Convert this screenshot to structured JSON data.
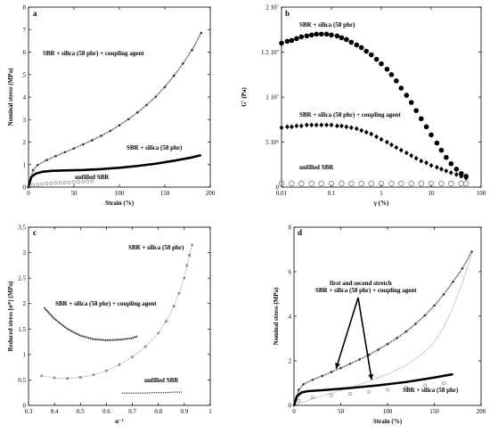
{
  "chart_data": [
    {
      "panel": "a",
      "type": "line",
      "xlabel": "Strain (%)",
      "ylabel": "Nominal stress (MPa)",
      "xlim": [
        0,
        200
      ],
      "ylim": [
        0,
        8
      ],
      "xticks": [
        "0",
        "50",
        "100",
        "150",
        "200"
      ],
      "yticks": [
        "0",
        "1",
        "2",
        "3",
        "4",
        "5",
        "6",
        "7",
        "8"
      ],
      "annotations": [
        "SBR + silica (58 phr) + coupling agent",
        "SBR + silica (58 phr)",
        "unfilled SBR"
      ],
      "series": [
        {
          "style": "dense-markers",
          "x": [
            0,
            5,
            10,
            20,
            30,
            40,
            50,
            60,
            70,
            80,
            90,
            100,
            110,
            120,
            130,
            140,
            150,
            160,
            170,
            180,
            190
          ],
          "y": [
            0,
            0.75,
            0.98,
            1.2,
            1.38,
            1.55,
            1.72,
            1.9,
            2.08,
            2.28,
            2.5,
            2.75,
            3.02,
            3.32,
            3.65,
            4.02,
            4.45,
            4.95,
            5.5,
            6.1,
            6.85
          ]
        },
        {
          "style": "thick-line",
          "x": [
            0,
            3,
            8,
            15,
            25,
            40,
            60,
            80,
            100,
            120,
            140,
            160,
            180,
            190
          ],
          "y": [
            0,
            0.45,
            0.6,
            0.68,
            0.72,
            0.74,
            0.76,
            0.8,
            0.86,
            0.94,
            1.04,
            1.17,
            1.32,
            1.42
          ]
        },
        {
          "style": "open-circles",
          "x": [
            0,
            5,
            10,
            15,
            20,
            25,
            30,
            35,
            40,
            45,
            50,
            55,
            60,
            65,
            70
          ],
          "y": [
            0,
            0.08,
            0.12,
            0.14,
            0.16,
            0.17,
            0.18,
            0.19,
            0.2,
            0.21,
            0.22,
            0.23,
            0.24,
            0.25,
            0.26
          ]
        }
      ]
    },
    {
      "panel": "b",
      "type": "scatter",
      "xlabel": "γ (%)",
      "ylabel": "G' (Pa)",
      "xscale": "log",
      "xlim": [
        0.01,
        100
      ],
      "ylim": [
        0,
        20000000
      ],
      "xticks": [
        "0.01",
        "0.1",
        "1",
        "10",
        "100"
      ],
      "yticks": [
        "0",
        "5 10⁶",
        "1 10⁷",
        "1.5 10⁷",
        "2 10⁷"
      ],
      "annotations": [
        "SBR + silica (58 phr)",
        "SBR + silica (58 phr) + coupling agent",
        "unfilled SBR"
      ],
      "series": [
        {
          "marker": "filled-circle",
          "x": [
            0.01,
            0.013,
            0.016,
            0.02,
            0.025,
            0.032,
            0.04,
            0.05,
            0.063,
            0.08,
            0.1,
            0.13,
            0.16,
            0.2,
            0.25,
            0.32,
            0.4,
            0.5,
            0.63,
            0.8,
            1,
            1.3,
            1.6,
            2,
            2.5,
            3.2,
            4,
            5,
            6.3,
            8,
            10,
            13,
            16,
            20,
            25,
            32,
            40,
            50
          ],
          "y": [
            16000000,
            16200000,
            16300000,
            16500000,
            16700000,
            16800000,
            16900000,
            17000000,
            17000000,
            17000000,
            16900000,
            16800000,
            16600000,
            16400000,
            16100000,
            15800000,
            15500000,
            15100000,
            14700000,
            14200000,
            13700000,
            13100000,
            12500000,
            11800000,
            11000000,
            10200000,
            9400000,
            8500000,
            7600000,
            6700000,
            5800000,
            4900000,
            4100000,
            3300000,
            2600000,
            2000000,
            1500000,
            1200000
          ]
        },
        {
          "marker": "filled-diamond",
          "x": [
            0.01,
            0.013,
            0.016,
            0.02,
            0.025,
            0.032,
            0.04,
            0.05,
            0.063,
            0.08,
            0.1,
            0.13,
            0.16,
            0.2,
            0.25,
            0.32,
            0.4,
            0.5,
            0.63,
            0.8,
            1,
            1.3,
            1.6,
            2,
            2.5,
            3.2,
            4,
            5,
            6.3,
            8,
            10,
            13,
            16,
            20,
            25,
            32,
            40,
            50
          ],
          "y": [
            6600000,
            6700000,
            6700000,
            6800000,
            6800000,
            6900000,
            6900000,
            6900000,
            6900000,
            6900000,
            6900000,
            6800000,
            6800000,
            6700000,
            6600000,
            6500000,
            6300000,
            6100000,
            5900000,
            5600000,
            5300000,
            5000000,
            4700000,
            4400000,
            4100000,
            3800000,
            3500000,
            3200000,
            2900000,
            2700000,
            2400000,
            2200000,
            2000000,
            1800000,
            1600000,
            1400000,
            1200000,
            1000000
          ]
        },
        {
          "marker": "open-circle",
          "x": [
            0.01,
            0.016,
            0.025,
            0.04,
            0.063,
            0.1,
            0.16,
            0.25,
            0.4,
            0.63,
            1,
            1.6,
            2.5,
            4,
            6.3,
            10,
            16,
            25,
            40,
            50
          ],
          "y": [
            400000,
            400000,
            400000,
            400000,
            400000,
            400000,
            400000,
            400000,
            400000,
            400000,
            400000,
            400000,
            400000,
            400000,
            400000,
            400000,
            400000,
            400000,
            400000,
            400000
          ]
        }
      ]
    },
    {
      "panel": "c",
      "type": "scatter",
      "xlabel": "α⁻¹",
      "ylabel": "Reduced stress [σ*] (MPa)",
      "xlim": [
        0.3,
        1.0
      ],
      "ylim": [
        0,
        3.5
      ],
      "xticks": [
        "0.3",
        "0.4",
        "0.5",
        "0.6",
        "0.7",
        "0.8",
        "0.9",
        "1"
      ],
      "yticks": [
        "0",
        "0.5",
        "1",
        "1.5",
        "2",
        "2.5",
        "3",
        "3.5"
      ],
      "annotations": [
        "SBR + silica (58 phr)",
        "SBR + silica (58 phr) + coupling agent",
        "unfilled SBR"
      ],
      "series": [
        {
          "marker": "cross",
          "x": [
            0.35,
            0.4,
            0.45,
            0.5,
            0.55,
            0.6,
            0.65,
            0.7,
            0.75,
            0.8,
            0.83,
            0.86,
            0.88,
            0.9,
            0.91,
            0.92,
            0.93
          ],
          "y": [
            0.58,
            0.54,
            0.53,
            0.55,
            0.6,
            0.68,
            0.8,
            0.95,
            1.15,
            1.42,
            1.65,
            1.95,
            2.2,
            2.5,
            2.75,
            2.95,
            3.15
          ]
        },
        {
          "marker": "dot",
          "x": [
            0.36,
            0.4,
            0.45,
            0.5,
            0.55,
            0.6,
            0.65,
            0.7,
            0.72
          ],
          "y": [
            1.92,
            1.7,
            1.5,
            1.37,
            1.3,
            1.28,
            1.29,
            1.32,
            1.36
          ]
        },
        {
          "marker": "dot",
          "x": [
            0.66,
            0.7,
            0.74,
            0.78,
            0.82,
            0.86,
            0.89
          ],
          "y": [
            0.24,
            0.24,
            0.24,
            0.25,
            0.25,
            0.26,
            0.26
          ]
        }
      ]
    },
    {
      "panel": "d",
      "type": "line",
      "xlabel": "Strain (%)",
      "ylabel": "Nominal stress (MPa)",
      "xlim": [
        0,
        200
      ],
      "ylim": [
        0,
        8
      ],
      "xticks": [
        "0",
        "50",
        "100",
        "150",
        "200"
      ],
      "yticks": [
        "0",
        "2",
        "4",
        "6",
        "8"
      ],
      "annotations": [
        "first and second stretch",
        "SBR + silica (58 phr) + coupling agent",
        "SBR + silica (58 phr)"
      ],
      "series": [
        {
          "style": "dense-markers",
          "x": [
            0,
            5,
            10,
            20,
            30,
            40,
            50,
            60,
            70,
            80,
            90,
            100,
            110,
            120,
            130,
            140,
            150,
            160,
            170,
            180,
            190
          ],
          "y": [
            0,
            0.7,
            0.95,
            1.15,
            1.32,
            1.5,
            1.68,
            1.87,
            2.06,
            2.27,
            2.5,
            2.75,
            3.02,
            3.32,
            3.66,
            4.04,
            4.48,
            4.98,
            5.55,
            6.15,
            6.9
          ]
        },
        {
          "style": "second-stretch",
          "x": [
            0,
            20,
            40,
            60,
            80,
            100,
            120,
            140,
            150,
            160,
            170,
            180,
            190
          ],
          "y": [
            0,
            0.3,
            0.55,
            0.8,
            1.08,
            1.4,
            1.8,
            2.4,
            2.85,
            3.5,
            4.4,
            5.5,
            6.8
          ]
        },
        {
          "style": "thick-line",
          "x": [
            0,
            3,
            8,
            15,
            30,
            60,
            90,
            120,
            150,
            170
          ],
          "y": [
            0,
            0.4,
            0.58,
            0.64,
            0.68,
            0.78,
            0.9,
            1.05,
            1.25,
            1.4
          ]
        },
        {
          "style": "open-circles",
          "x": [
            5,
            20,
            40,
            60,
            80,
            100,
            120,
            140,
            160
          ],
          "y": [
            0.2,
            0.35,
            0.45,
            0.52,
            0.6,
            0.7,
            0.8,
            0.9,
            1.0
          ]
        }
      ]
    }
  ]
}
